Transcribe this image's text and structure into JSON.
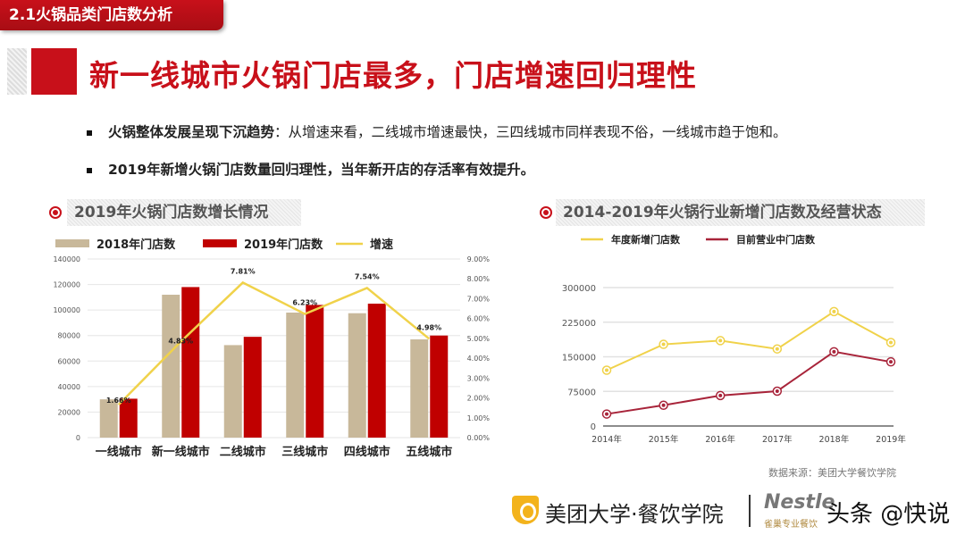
{
  "header": {
    "section_tab": "2.1火锅品类门店数分析",
    "title": "新一线城市火锅门店最多，门店增速回归理性"
  },
  "bullets": [
    {
      "bold": "火锅整体发展呈现下沉趋势",
      "text": "：从增速来看，二线城市增速最快，三四线城市同样表现不俗，一线城市趋于饱和。"
    },
    {
      "bold": "2019年新增火锅门店数量回归理性，当年新开店的存活率有效提升。",
      "text": ""
    }
  ],
  "sections": {
    "left": "2019年火锅门店数增长情况",
    "right": "2014-2019年火锅行业新增门店数及经营状态"
  },
  "source": "数据来源：美团大学餐饮学院",
  "footer": {
    "brand": "美团大学·餐饮学院",
    "partner": "Nestle",
    "partner_sub": "雀巢专业餐饮",
    "watermark": "头条 @快说"
  },
  "colors": {
    "red": "#c8101a",
    "tan": "#c8b89a",
    "yellow": "#f0d24a",
    "dark_red": "#a8243a"
  },
  "chart_data": [
    {
      "type": "bar",
      "title": "2019年火锅门店数增长情况",
      "categories": [
        "一线城市",
        "新一线城市",
        "二线城市",
        "三线城市",
        "四线城市",
        "五线城市"
      ],
      "series": [
        {
          "name": "2018年门店数",
          "kind": "bar",
          "color": "#c8b89a",
          "values": [
            30000,
            112000,
            72500,
            98000,
            97500,
            77000
          ]
        },
        {
          "name": "2019年门店数",
          "kind": "bar",
          "color": "#c00000",
          "values": [
            30500,
            118000,
            79000,
            104000,
            105000,
            80000
          ]
        },
        {
          "name": "增速",
          "kind": "line",
          "axis": "right",
          "color": "#f0d24a",
          "values": [
            1.66,
            4.83,
            7.81,
            6.23,
            7.54,
            4.98
          ],
          "labels": [
            "1.66%",
            "4.83%",
            "7.81%",
            "6.23%",
            "7.54%",
            "4.98%"
          ]
        }
      ],
      "ylim": [
        0,
        140000
      ],
      "yticks": [
        "0",
        "20000",
        "40000",
        "60000",
        "80000",
        "100000",
        "120000",
        "140000"
      ],
      "y2lim": [
        0,
        9
      ],
      "y2ticks": [
        "0.00%",
        "1.00%",
        "2.00%",
        "3.00%",
        "4.00%",
        "5.00%",
        "6.00%",
        "7.00%",
        "8.00%",
        "9.00%"
      ],
      "grid": true,
      "legend": "top"
    },
    {
      "type": "line",
      "title": "2014-2019年火锅行业新增门店数及经营状态",
      "categories": [
        "2014年",
        "2015年",
        "2016年",
        "2017年",
        "2018年",
        "2019年"
      ],
      "series": [
        {
          "name": "年度新增门店数",
          "color": "#f0d24a",
          "values": [
            121000,
            177000,
            185000,
            167000,
            248000,
            181000
          ]
        },
        {
          "name": "目前营业中门店数",
          "color": "#a8243a",
          "values": [
            26000,
            45000,
            66000,
            75500,
            161000,
            139000
          ]
        }
      ],
      "ylim": [
        0,
        300000
      ],
      "yticks": [
        "0",
        "75000",
        "150000",
        "225000",
        "300000"
      ],
      "grid": true,
      "legend": "top"
    }
  ]
}
